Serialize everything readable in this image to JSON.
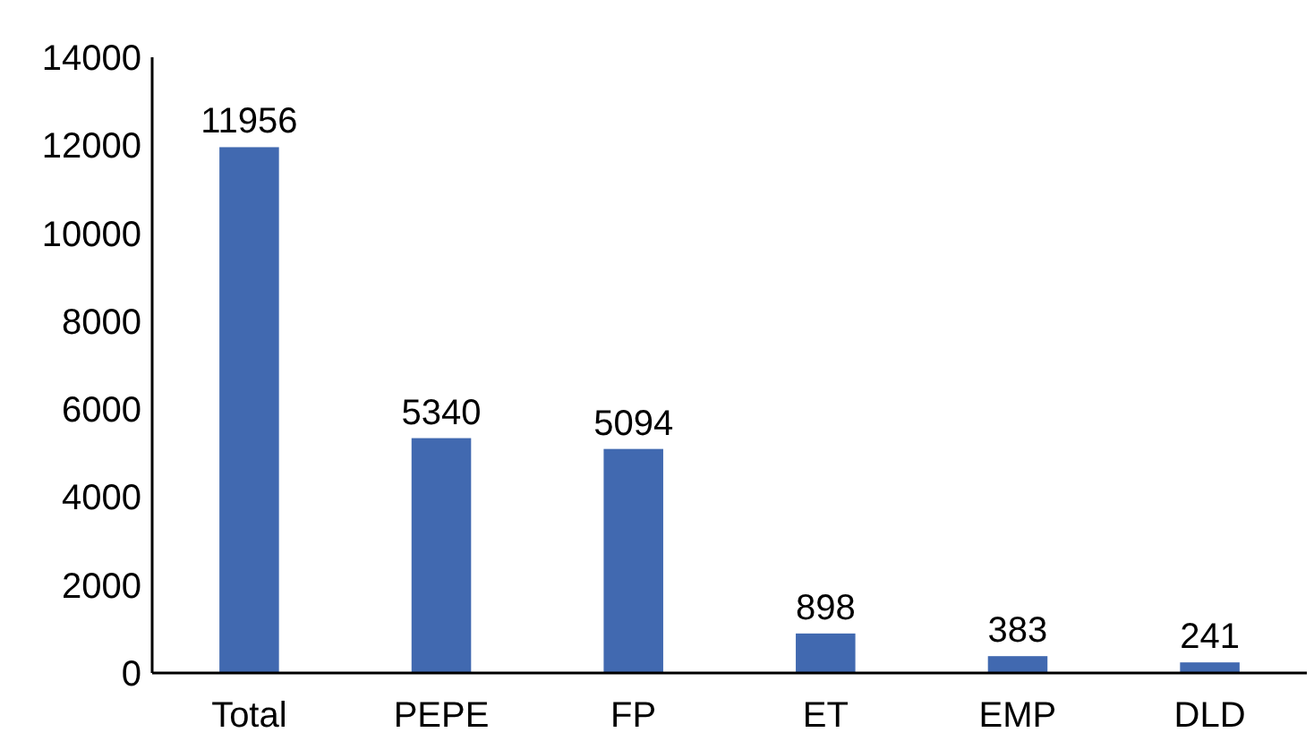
{
  "chart_data": {
    "type": "bar",
    "categories": [
      "Total",
      "PEPE",
      "FP",
      "ET",
      "EMP",
      "DLD"
    ],
    "values": [
      11956,
      5340,
      5094,
      898,
      383,
      241
    ],
    "color": "#4169b0",
    "ylim": [
      0,
      14000
    ],
    "yticks": [
      0,
      2000,
      4000,
      6000,
      8000,
      10000,
      12000,
      14000
    ],
    "data_labels": true,
    "grid": false
  }
}
